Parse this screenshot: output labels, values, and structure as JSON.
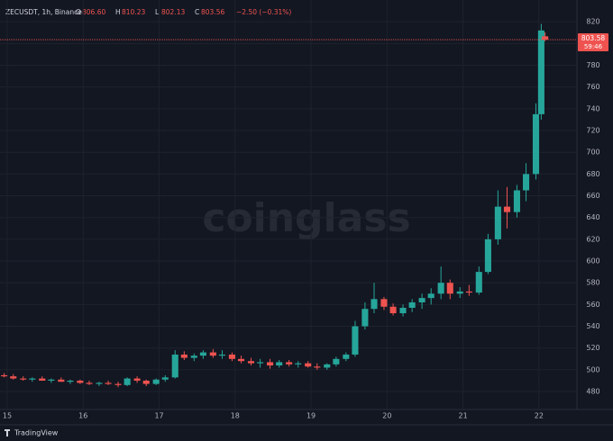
{
  "header": {
    "symbol": "ZECUSDT, 1h, Binance",
    "change": "−2.50 (−0.31%)"
  },
  "watermark": "coinglass",
  "footer": "TradingView",
  "price_tag": {
    "last_price": "803.58",
    "countdown": "59:46"
  },
  "chart_data": {
    "type": "candlestick",
    "up_color": "#26a69a",
    "down_color": "#ef5350",
    "xlim": [
      14.905,
      22.5
    ],
    "xticks": [
      15,
      16,
      17,
      18,
      19,
      20,
      21,
      22
    ],
    "ylim": [
      463.5,
      840
    ],
    "yticks": [
      480,
      500,
      520,
      540,
      560,
      580,
      600,
      620,
      640,
      660,
      680,
      700,
      720,
      740,
      760,
      780,
      800,
      820
    ],
    "grid": true,
    "x": [
      14.96,
      15.08,
      15.21,
      15.33,
      15.46,
      15.58,
      15.71,
      15.83,
      15.96,
      16.08,
      16.21,
      16.33,
      16.46,
      16.58,
      16.71,
      16.83,
      16.96,
      17.08,
      17.21,
      17.33,
      17.46,
      17.58,
      17.71,
      17.83,
      17.96,
      18.08,
      18.21,
      18.33,
      18.46,
      18.58,
      18.71,
      18.83,
      18.96,
      19.08,
      19.21,
      19.33,
      19.46,
      19.58,
      19.71,
      19.83,
      19.96,
      20.08,
      20.21,
      20.33,
      20.46,
      20.58,
      20.71,
      20.83,
      20.96,
      21.08,
      21.21,
      21.33,
      21.46,
      21.58,
      21.71,
      21.83,
      21.96,
      22.03,
      22.08
    ],
    "open": [
      495,
      494,
      492,
      491,
      492,
      490,
      491,
      489,
      490,
      488,
      487,
      488,
      487,
      486,
      492,
      490,
      487,
      491,
      493,
      514,
      511,
      513,
      516,
      513,
      514,
      510,
      508,
      506,
      507,
      504,
      507,
      505,
      506,
      503,
      502,
      505,
      510,
      514,
      540,
      556,
      565,
      558,
      552,
      557,
      562,
      566,
      570,
      580,
      570,
      572,
      571,
      590,
      620,
      650,
      645,
      665,
      680,
      735,
      806.6
    ],
    "high": [
      497,
      496,
      494,
      493,
      494,
      492,
      493,
      491,
      491,
      490,
      489,
      490,
      489,
      493,
      494,
      491,
      492,
      495,
      518,
      517,
      515,
      518,
      519,
      518,
      516,
      513,
      511,
      510,
      510,
      509,
      509,
      508,
      508,
      506,
      506,
      512,
      516,
      545,
      562,
      580,
      567,
      561,
      560,
      565,
      570,
      575,
      595,
      583,
      576,
      578,
      595,
      625,
      665,
      668,
      670,
      690,
      745,
      818,
      810.23
    ],
    "low": [
      493,
      491,
      490,
      489,
      490,
      488,
      489,
      487,
      487,
      486,
      485,
      486,
      484,
      485,
      488,
      485,
      486,
      489,
      492,
      509,
      508,
      510,
      511,
      510,
      508,
      506,
      504,
      502,
      501,
      502,
      503,
      502,
      502,
      500,
      500,
      503,
      508,
      512,
      537,
      552,
      555,
      550,
      549,
      553,
      556,
      560,
      565,
      565,
      566,
      568,
      569,
      588,
      615,
      630,
      640,
      655,
      675,
      730,
      802.13
    ],
    "close": [
      494,
      492,
      491,
      492,
      490,
      491,
      489,
      490,
      488,
      487,
      488,
      487,
      486,
      492,
      490,
      487,
      491,
      493,
      514,
      511,
      513,
      516,
      513,
      514,
      510,
      508,
      506,
      507,
      504,
      507,
      505,
      506,
      503,
      502,
      505,
      510,
      514,
      540,
      556,
      565,
      558,
      552,
      557,
      562,
      566,
      570,
      580,
      570,
      572,
      571,
      590,
      620,
      650,
      645,
      665,
      680,
      735,
      812,
      803.56
    ]
  }
}
